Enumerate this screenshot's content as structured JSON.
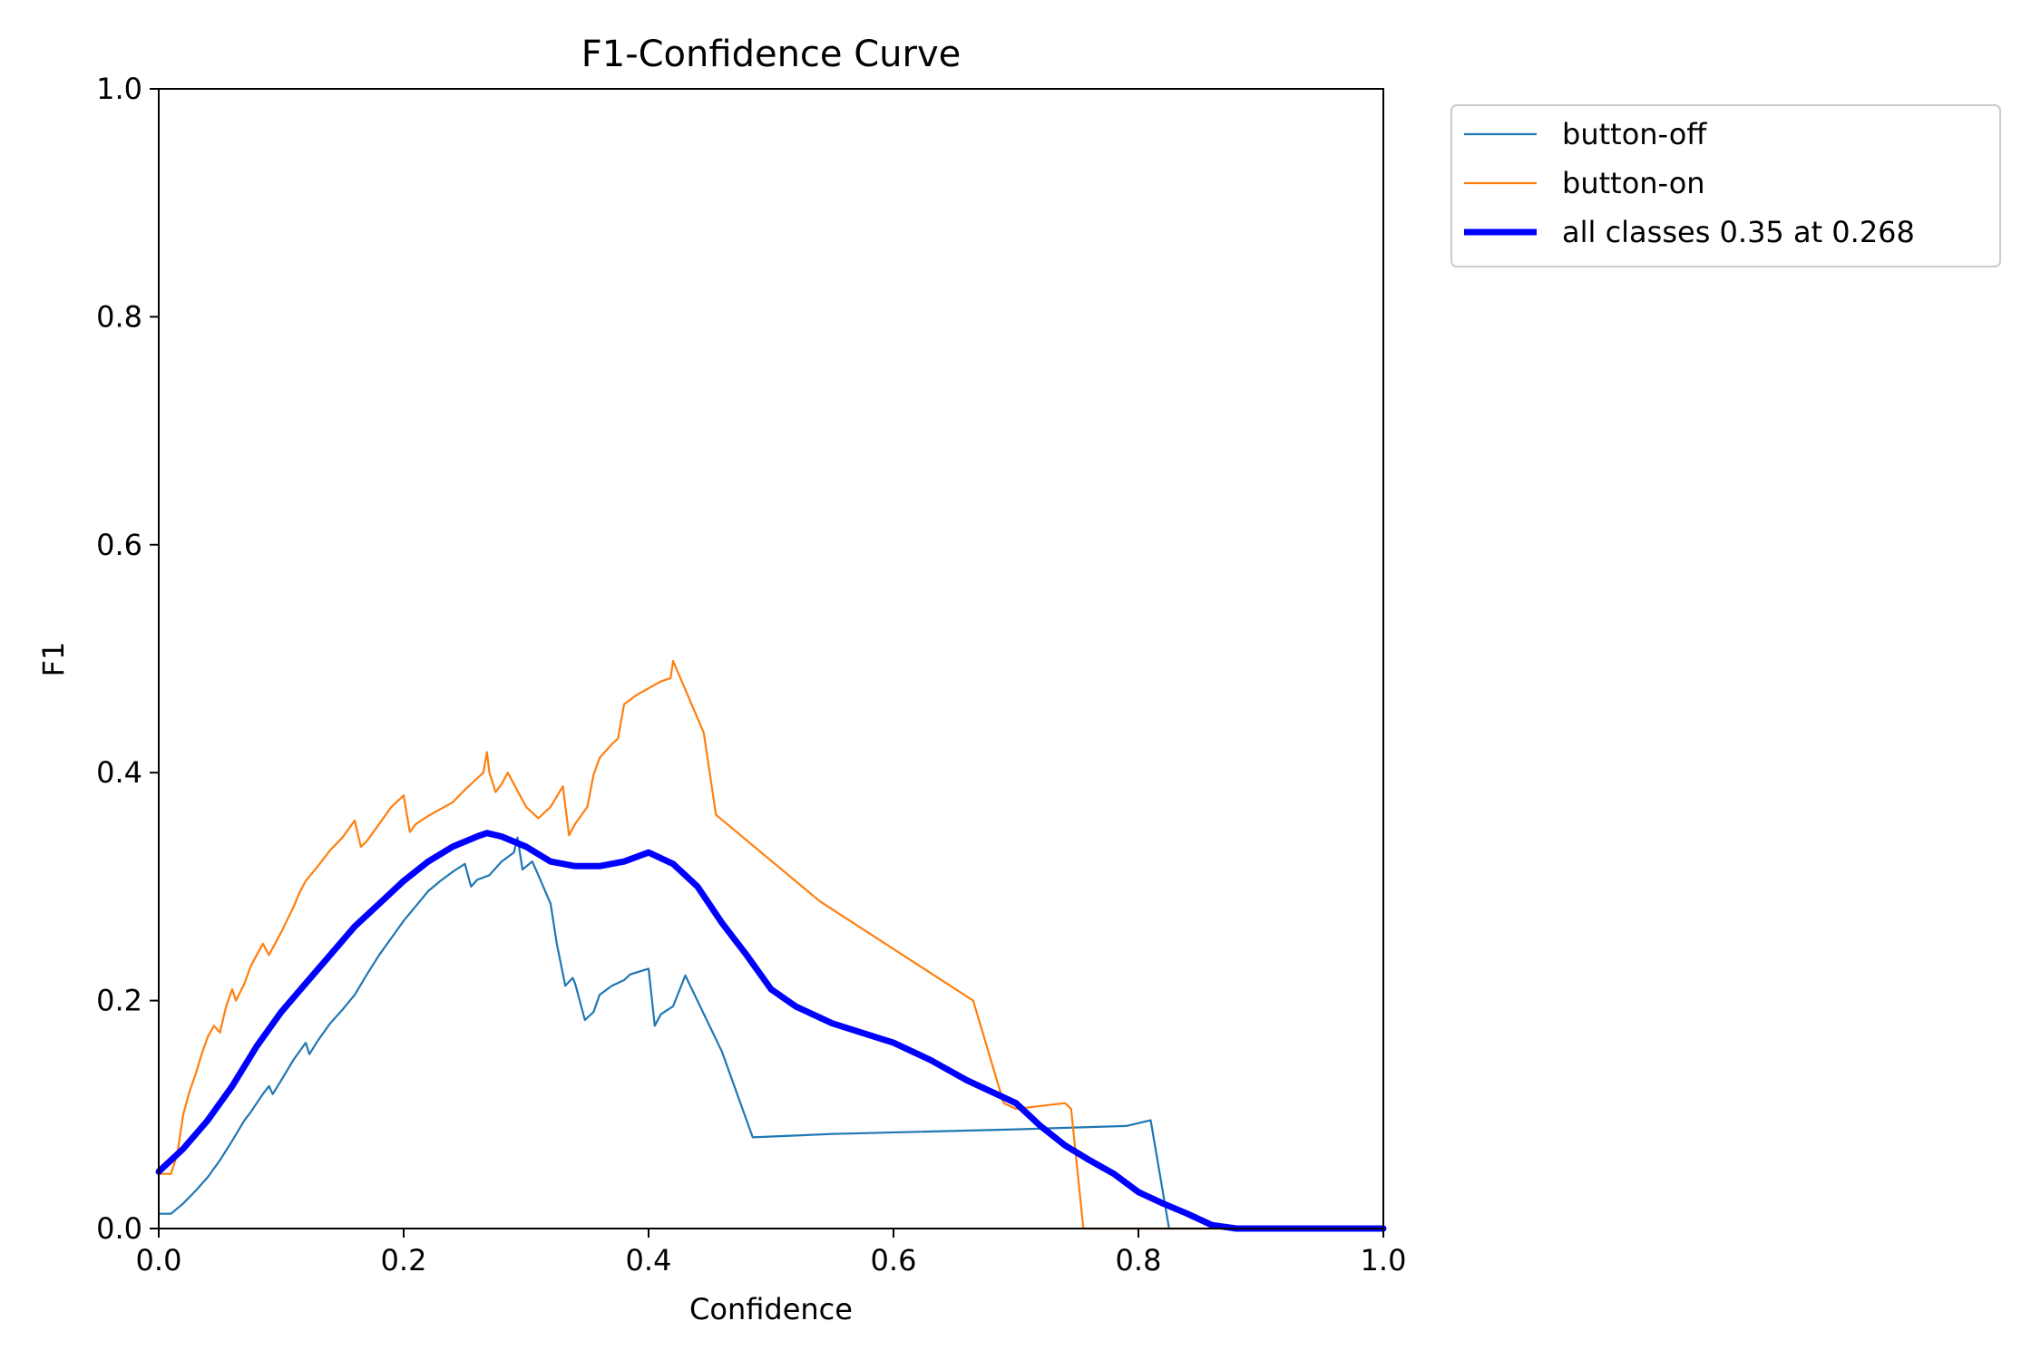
{
  "chart_data": {
    "type": "line",
    "title": "F1-Confidence Curve",
    "xlabel": "Confidence",
    "ylabel": "F1",
    "xlim": [
      0,
      1
    ],
    "ylim": [
      0,
      1
    ],
    "x_ticks": [
      "0.0",
      "0.2",
      "0.4",
      "0.6",
      "0.8",
      "1.0"
    ],
    "y_ticks": [
      "0.0",
      "0.2",
      "0.4",
      "0.6",
      "0.8",
      "1.0"
    ],
    "grid": false,
    "legend_position": "outside-top-right",
    "series": [
      {
        "name": "button-off",
        "color": "#1f77b4",
        "points": [
          [
            0,
            0.013
          ],
          [
            0.01,
            0.013
          ],
          [
            0.02,
            0.022
          ],
          [
            0.03,
            0.033
          ],
          [
            0.04,
            0.045
          ],
          [
            0.05,
            0.06
          ],
          [
            0.06,
            0.077
          ],
          [
            0.07,
            0.095
          ],
          [
            0.075,
            0.102
          ],
          [
            0.08,
            0.11
          ],
          [
            0.085,
            0.118
          ],
          [
            0.09,
            0.125
          ],
          [
            0.093,
            0.118
          ],
          [
            0.1,
            0.13
          ],
          [
            0.11,
            0.148
          ],
          [
            0.12,
            0.163
          ],
          [
            0.123,
            0.153
          ],
          [
            0.13,
            0.165
          ],
          [
            0.14,
            0.18
          ],
          [
            0.15,
            0.192
          ],
          [
            0.16,
            0.205
          ],
          [
            0.17,
            0.223
          ],
          [
            0.18,
            0.24
          ],
          [
            0.19,
            0.255
          ],
          [
            0.2,
            0.27
          ],
          [
            0.21,
            0.283
          ],
          [
            0.22,
            0.296
          ],
          [
            0.23,
            0.305
          ],
          [
            0.24,
            0.313
          ],
          [
            0.25,
            0.32
          ],
          [
            0.255,
            0.3
          ],
          [
            0.26,
            0.306
          ],
          [
            0.27,
            0.31
          ],
          [
            0.28,
            0.322
          ],
          [
            0.29,
            0.33
          ],
          [
            0.293,
            0.343
          ],
          [
            0.297,
            0.315
          ],
          [
            0.305,
            0.322
          ],
          [
            0.31,
            0.31
          ],
          [
            0.32,
            0.285
          ],
          [
            0.325,
            0.25
          ],
          [
            0.332,
            0.213
          ],
          [
            0.338,
            0.22
          ],
          [
            0.34,
            0.215
          ],
          [
            0.348,
            0.183
          ],
          [
            0.355,
            0.19
          ],
          [
            0.36,
            0.205
          ],
          [
            0.37,
            0.213
          ],
          [
            0.38,
            0.218
          ],
          [
            0.385,
            0.223
          ],
          [
            0.4,
            0.228
          ],
          [
            0.405,
            0.178
          ],
          [
            0.41,
            0.188
          ],
          [
            0.42,
            0.195
          ],
          [
            0.43,
            0.222
          ],
          [
            0.46,
            0.155
          ],
          [
            0.485,
            0.08
          ],
          [
            0.55,
            0.083
          ],
          [
            0.7,
            0.087
          ],
          [
            0.79,
            0.09
          ],
          [
            0.81,
            0.095
          ],
          [
            0.825,
            0
          ]
        ]
      },
      {
        "name": "button-on",
        "color": "#ff7f0e",
        "points": [
          [
            0,
            0.048
          ],
          [
            0.01,
            0.048
          ],
          [
            0.015,
            0.065
          ],
          [
            0.02,
            0.1
          ],
          [
            0.025,
            0.12
          ],
          [
            0.03,
            0.135
          ],
          [
            0.035,
            0.153
          ],
          [
            0.04,
            0.168
          ],
          [
            0.045,
            0.178
          ],
          [
            0.05,
            0.172
          ],
          [
            0.055,
            0.195
          ],
          [
            0.06,
            0.21
          ],
          [
            0.063,
            0.2
          ],
          [
            0.07,
            0.215
          ],
          [
            0.075,
            0.23
          ],
          [
            0.08,
            0.24
          ],
          [
            0.085,
            0.25
          ],
          [
            0.09,
            0.24
          ],
          [
            0.1,
            0.26
          ],
          [
            0.11,
            0.282
          ],
          [
            0.115,
            0.295
          ],
          [
            0.12,
            0.305
          ],
          [
            0.13,
            0.318
          ],
          [
            0.14,
            0.332
          ],
          [
            0.15,
            0.343
          ],
          [
            0.16,
            0.358
          ],
          [
            0.165,
            0.335
          ],
          [
            0.17,
            0.34
          ],
          [
            0.18,
            0.355
          ],
          [
            0.19,
            0.37
          ],
          [
            0.2,
            0.38
          ],
          [
            0.205,
            0.348
          ],
          [
            0.21,
            0.355
          ],
          [
            0.22,
            0.362
          ],
          [
            0.23,
            0.368
          ],
          [
            0.24,
            0.374
          ],
          [
            0.25,
            0.385
          ],
          [
            0.26,
            0.395
          ],
          [
            0.265,
            0.4
          ],
          [
            0.268,
            0.418
          ],
          [
            0.27,
            0.4
          ],
          [
            0.275,
            0.383
          ],
          [
            0.28,
            0.39
          ],
          [
            0.285,
            0.4
          ],
          [
            0.29,
            0.39
          ],
          [
            0.3,
            0.37
          ],
          [
            0.31,
            0.36
          ],
          [
            0.32,
            0.37
          ],
          [
            0.33,
            0.388
          ],
          [
            0.335,
            0.345
          ],
          [
            0.34,
            0.355
          ],
          [
            0.35,
            0.37
          ],
          [
            0.355,
            0.398
          ],
          [
            0.36,
            0.413
          ],
          [
            0.37,
            0.425
          ],
          [
            0.375,
            0.43
          ],
          [
            0.38,
            0.46
          ],
          [
            0.39,
            0.468
          ],
          [
            0.41,
            0.48
          ],
          [
            0.418,
            0.483
          ],
          [
            0.42,
            0.498
          ],
          [
            0.445,
            0.435
          ],
          [
            0.455,
            0.363
          ],
          [
            0.54,
            0.287
          ],
          [
            0.665,
            0.2
          ],
          [
            0.69,
            0.11
          ],
          [
            0.7,
            0.105
          ],
          [
            0.74,
            0.11
          ],
          [
            0.745,
            0.105
          ],
          [
            0.755,
            0
          ],
          [
            1.0,
            0
          ]
        ]
      },
      {
        "name": "all classes 0.35 at 0.268",
        "color": "#0000ff",
        "thick": true,
        "points": [
          [
            0,
            0.05
          ],
          [
            0.02,
            0.07
          ],
          [
            0.04,
            0.095
          ],
          [
            0.06,
            0.125
          ],
          [
            0.08,
            0.16
          ],
          [
            0.1,
            0.19
          ],
          [
            0.12,
            0.215
          ],
          [
            0.14,
            0.24
          ],
          [
            0.16,
            0.265
          ],
          [
            0.18,
            0.285
          ],
          [
            0.2,
            0.305
          ],
          [
            0.22,
            0.322
          ],
          [
            0.24,
            0.335
          ],
          [
            0.26,
            0.344
          ],
          [
            0.268,
            0.347
          ],
          [
            0.28,
            0.344
          ],
          [
            0.3,
            0.335
          ],
          [
            0.32,
            0.322
          ],
          [
            0.34,
            0.318
          ],
          [
            0.36,
            0.318
          ],
          [
            0.38,
            0.322
          ],
          [
            0.4,
            0.33
          ],
          [
            0.42,
            0.32
          ],
          [
            0.44,
            0.3
          ],
          [
            0.46,
            0.268
          ],
          [
            0.48,
            0.24
          ],
          [
            0.5,
            0.21
          ],
          [
            0.52,
            0.195
          ],
          [
            0.55,
            0.18
          ],
          [
            0.6,
            0.163
          ],
          [
            0.63,
            0.148
          ],
          [
            0.66,
            0.13
          ],
          [
            0.7,
            0.11
          ],
          [
            0.72,
            0.09
          ],
          [
            0.74,
            0.073
          ],
          [
            0.76,
            0.06
          ],
          [
            0.78,
            0.048
          ],
          [
            0.8,
            0.032
          ],
          [
            0.82,
            0.022
          ],
          [
            0.84,
            0.013
          ],
          [
            0.86,
            0.003
          ],
          [
            0.88,
            0
          ],
          [
            1.0,
            0
          ]
        ]
      }
    ]
  }
}
